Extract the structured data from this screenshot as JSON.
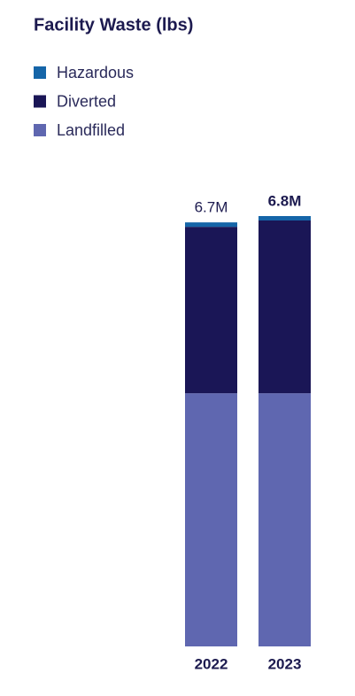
{
  "chart_data": {
    "type": "stacked-bar",
    "title": "Facility Waste (lbs)",
    "categories": [
      "2022",
      "2023"
    ],
    "series": [
      {
        "name": "Hazardous",
        "color": "#1565a8",
        "values": [
          70000,
          70000
        ]
      },
      {
        "name": "Diverted",
        "color": "#1a1656",
        "values": [
          2630000,
          2730000
        ]
      },
      {
        "name": "Landfilled",
        "color": "#5f67b0",
        "values": [
          4000000,
          4000000
        ]
      }
    ],
    "totals": [
      6700000,
      6800000
    ],
    "total_labels": [
      "6.7M",
      "6.8M"
    ]
  }
}
